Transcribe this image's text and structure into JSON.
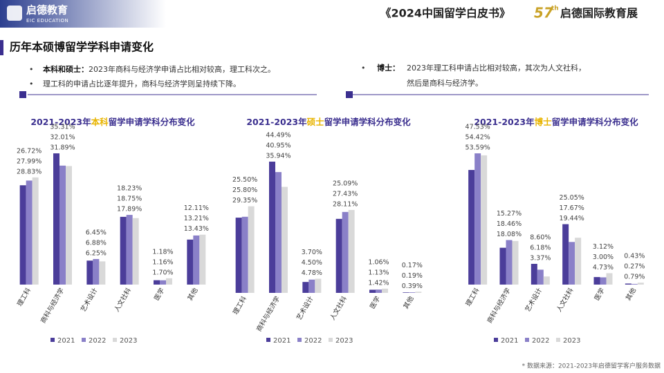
{
  "header": {
    "logo": "启德教育",
    "logo_sub": "EIC EDUCATION",
    "book": "《2024中国留学白皮书》",
    "expo_num": "57",
    "expo_sup": "th",
    "expo": "启德国际教育展"
  },
  "section_title": "历年本硕博留学学科申请变化",
  "notes": {
    "left": [
      {
        "label": "本科和硕士：",
        "text": "2023年商科与经济学申请占比相对较高，理工科次之。"
      },
      {
        "text": "理工科的申请占比逐年提升，商科与经济学则呈持续下降。"
      }
    ],
    "right": {
      "label": "博士：",
      "lines": [
        "2023年理工科申请占比相对较高，其次为人文社科，",
        "然后是商科与经济学。"
      ]
    }
  },
  "source": "* 数据来源：2021-2023年启德留学客户服务数据",
  "chart_data": [
    {
      "type": "bar",
      "title": [
        "2021-2023年",
        "本科",
        "留学申请学科分布变化"
      ],
      "categories": [
        "理工科",
        "商科与经济学",
        "艺术设计",
        "人文社科",
        "医学",
        "其他"
      ],
      "series": [
        {
          "name": "2021",
          "color": "#4b3d9a",
          "values": [
            26.72,
            35.31,
            6.45,
            18.23,
            1.18,
            12.11
          ],
          "value_labels": [
            "26.72%",
            "35.31%",
            "6.45%",
            "18.23%",
            "1.18%",
            "12.11%"
          ]
        },
        {
          "name": "2022",
          "color": "#8a80c8",
          "values": [
            27.99,
            32.01,
            6.88,
            18.75,
            1.16,
            13.21
          ],
          "value_labels": [
            "27.99%",
            "32.01%",
            "6.88%",
            "18.75%",
            "1.16%",
            "13.21%"
          ]
        },
        {
          "name": "2023",
          "color": "#d9d9d9",
          "values": [
            28.83,
            31.89,
            6.25,
            17.89,
            1.7,
            13.43
          ],
          "value_labels": [
            "28.83%",
            "31.89%",
            "6.25%",
            "17.89%",
            "1.70%",
            "13.43%"
          ]
        }
      ]
    },
    {
      "type": "bar",
      "title": [
        "2021-2023年",
        "硕士",
        "留学申请学科分布变化"
      ],
      "categories": [
        "理工科",
        "商科与经济学",
        "艺术设计",
        "人文社科",
        "医学",
        "其他"
      ],
      "series": [
        {
          "name": "2021",
          "color": "#4b3d9a",
          "values": [
            25.5,
            44.49,
            3.7,
            25.09,
            1.06,
            0.17
          ],
          "value_labels": [
            "25.50%",
            "44.49%",
            "3.70%",
            "25.09%",
            "1.06%",
            "0.17%"
          ]
        },
        {
          "name": "2022",
          "color": "#8a80c8",
          "values": [
            25.8,
            40.95,
            4.5,
            27.43,
            1.13,
            0.19
          ],
          "value_labels": [
            "25.80%",
            "40.95%",
            "4.50%",
            "27.43%",
            "1.13%",
            "0.19%"
          ]
        },
        {
          "name": "2023",
          "color": "#d9d9d9",
          "values": [
            29.35,
            35.94,
            4.78,
            28.11,
            1.42,
            0.39
          ],
          "value_labels": [
            "29.35%",
            "35.94%",
            "4.78%",
            "28.11%",
            "1.42%",
            "0.39%"
          ]
        }
      ]
    },
    {
      "type": "bar",
      "title": [
        "2021-2023年",
        "博士",
        "留学申请学科分布变化"
      ],
      "categories": [
        "理工科",
        "商科与经济学",
        "艺术设计",
        "人文社科",
        "医学",
        "其他"
      ],
      "series": [
        {
          "name": "2021",
          "color": "#4b3d9a",
          "values": [
            47.53,
            15.27,
            8.6,
            25.05,
            3.12,
            0.43
          ],
          "value_labels": [
            "47.53%",
            "15.27%",
            "8.60%",
            "25.05%",
            "3.12%",
            "0.43%"
          ]
        },
        {
          "name": "2022",
          "color": "#8a80c8",
          "values": [
            54.42,
            18.46,
            6.18,
            17.67,
            3.0,
            0.27
          ],
          "value_labels": [
            "54.42%",
            "18.46%",
            "6.18%",
            "17.67%",
            "3.00%",
            "0.27%"
          ]
        },
        {
          "name": "2023",
          "color": "#d9d9d9",
          "values": [
            53.59,
            18.08,
            3.37,
            19.44,
            4.73,
            0.79
          ],
          "value_labels": [
            "53.59%",
            "18.08%",
            "3.37%",
            "19.44%",
            "4.73%",
            "0.79%"
          ]
        }
      ]
    }
  ]
}
